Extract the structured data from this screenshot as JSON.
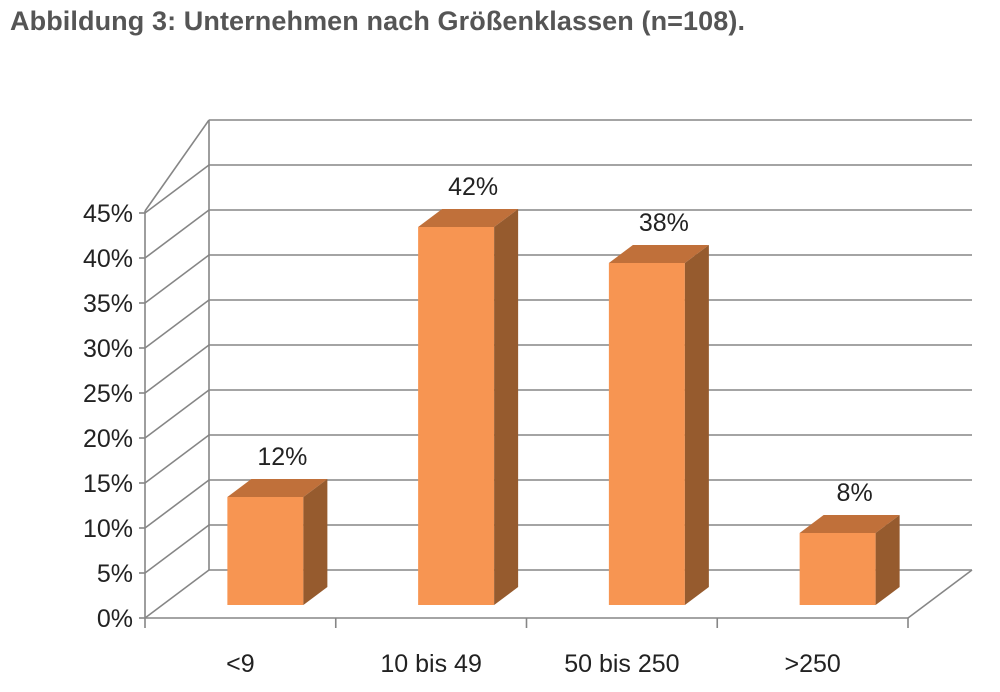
{
  "title": "Abbildung 3: Unternehmen nach Größenklassen (n=108).",
  "chart_data": {
    "type": "bar",
    "title": "Abbildung 3: Unternehmen nach Größenklassen (n=108).",
    "categories": [
      "<9",
      "10 bis 49",
      "50 bis 250",
      ">250"
    ],
    "values": [
      12,
      42,
      38,
      8
    ],
    "value_labels": [
      "12%",
      "42%",
      "38%",
      "8%"
    ],
    "ylim": [
      0,
      45
    ],
    "yticks": [
      0,
      5,
      10,
      15,
      20,
      25,
      30,
      35,
      40,
      45
    ],
    "ytick_labels": [
      "0%",
      "5%",
      "10%",
      "15%",
      "20%",
      "25%",
      "30%",
      "35%",
      "40%",
      "45%"
    ],
    "xlabel": "",
    "ylabel": "",
    "grid": true,
    "legend": "none",
    "style": "3d-column",
    "colors": {
      "bar_front": "#F79552",
      "bar_top": "#C0703A",
      "bar_side": "#965B2E",
      "grid": "#868686",
      "text": "#222222"
    }
  }
}
